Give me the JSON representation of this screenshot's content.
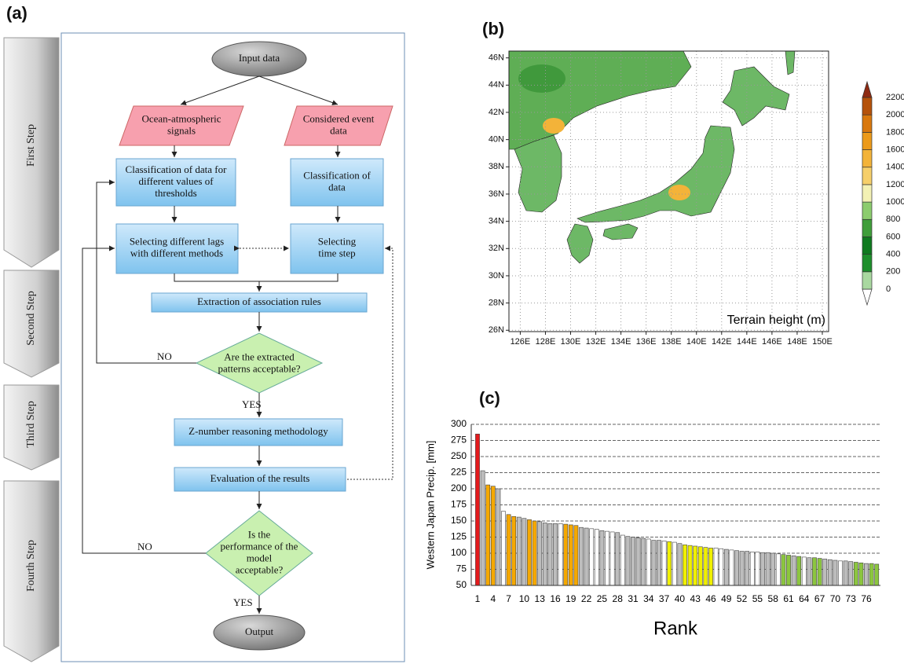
{
  "flowchart": {
    "label": "(a)",
    "steps": [
      "First Step",
      "Second Step",
      "Third Step",
      "Fourth Step"
    ],
    "nodes": [
      {
        "lines": [
          "Input data"
        ]
      },
      {
        "lines": [
          "Ocean-atmospheric",
          "signals"
        ]
      },
      {
        "lines": [
          "Considered event",
          "data"
        ]
      },
      {
        "lines": [
          "Classification of data for",
          "different values of",
          "thresholds"
        ]
      },
      {
        "lines": [
          "Classification of",
          "data"
        ]
      },
      {
        "lines": [
          "Selecting different lags",
          "with different methods"
        ]
      },
      {
        "lines": [
          "Selecting",
          "time step"
        ]
      },
      {
        "lines": [
          "Extraction of association rules"
        ]
      },
      {
        "lines": [
          "Are the extracted",
          "patterns acceptable?"
        ]
      },
      {
        "lines": [
          "Z-number reasoning methodology"
        ]
      },
      {
        "lines": [
          "Evaluation of the results"
        ]
      },
      {
        "lines": [
          "Is the",
          "performance of the",
          "model",
          "acceptable?"
        ]
      },
      {
        "lines": [
          "Output"
        ]
      }
    ],
    "edge_labels": [
      "NO",
      "YES",
      "NO",
      "YES"
    ]
  },
  "chart_data": [
    {
      "type": "map",
      "label": "(b)",
      "annotation": "Terrain height (m)",
      "xlim": [
        125.1,
        150.5
      ],
      "ylim": [
        25.9,
        46.5
      ],
      "xticks": [
        {
          "value": 126,
          "label": "126E"
        },
        {
          "value": 128,
          "label": "128E"
        },
        {
          "value": 130,
          "label": "130E"
        },
        {
          "value": 132,
          "label": "132E"
        },
        {
          "value": 134,
          "label": "134E"
        },
        {
          "value": 136,
          "label": "136E"
        },
        {
          "value": 138,
          "label": "138E"
        },
        {
          "value": 140,
          "label": "140E"
        },
        {
          "value": 142,
          "label": "142E"
        },
        {
          "value": 144,
          "label": "144E"
        },
        {
          "value": 146,
          "label": "146E"
        },
        {
          "value": 148,
          "label": "148E"
        },
        {
          "value": 150,
          "label": "150E"
        }
      ],
      "yticks": [
        {
          "value": 26,
          "label": "26N"
        },
        {
          "value": 28,
          "label": "28N"
        },
        {
          "value": 30,
          "label": "30N"
        },
        {
          "value": 32,
          "label": "32N"
        },
        {
          "value": 34,
          "label": "34N"
        },
        {
          "value": 36,
          "label": "36N"
        },
        {
          "value": 38,
          "label": "38N"
        },
        {
          "value": 40,
          "label": "40N"
        },
        {
          "value": 42,
          "label": "42N"
        },
        {
          "value": 44,
          "label": "44N"
        },
        {
          "value": 46,
          "label": "46N"
        }
      ],
      "grid": true,
      "colorbar": {
        "levels": [
          0,
          200,
          400,
          600,
          800,
          1000,
          1200,
          1400,
          1600,
          1800,
          2000,
          2200
        ],
        "colors": [
          "#ffffff",
          "#a9d8a0",
          "#1e8f2c",
          "#0f7a1f",
          "#3f9e3a",
          "#8ccc6e",
          "#f3f1b4",
          "#f6cf6a",
          "#f3b339",
          "#ec9a1a",
          "#d9780d",
          "#b5520a",
          "#8e2a12"
        ]
      }
    },
    {
      "type": "bar",
      "label": "(c)",
      "ylabel": "Western Japan Precip. [mm]",
      "xlabel": "Rank",
      "ylim": [
        50,
        300
      ],
      "yticks": [
        50,
        75,
        100,
        125,
        150,
        175,
        200,
        225,
        250,
        275,
        300
      ],
      "grid": true,
      "categories": [
        1,
        null,
        null,
        4,
        null,
        null,
        7,
        null,
        null,
        10,
        null,
        null,
        13,
        null,
        null,
        16,
        null,
        null,
        19,
        null,
        null,
        22,
        null,
        null,
        25,
        null,
        null,
        28,
        null,
        null,
        31,
        null,
        null,
        34,
        null,
        null,
        37,
        null,
        null,
        40,
        null,
        null,
        43,
        null,
        null,
        46,
        null,
        null,
        49,
        null,
        null,
        52,
        null,
        null,
        55,
        null,
        null,
        58,
        null,
        null,
        61,
        null,
        null,
        64,
        null,
        null,
        67,
        null,
        null,
        70,
        null,
        null,
        73,
        null,
        null,
        76,
        null,
        null
      ],
      "values": [
        285,
        228,
        206,
        204,
        200,
        165,
        160,
        157,
        156,
        154,
        152,
        150,
        149,
        147,
        146,
        146,
        146,
        145,
        144,
        143,
        140,
        139,
        138,
        137,
        135,
        134,
        133,
        132,
        128,
        126,
        125,
        124,
        123,
        122,
        120,
        120,
        119,
        118,
        117,
        115,
        113,
        112,
        111,
        110,
        109,
        108,
        108,
        107,
        106,
        105,
        104,
        103,
        103,
        102,
        102,
        101,
        101,
        100,
        99,
        98,
        97,
        96,
        95,
        94,
        93,
        93,
        92,
        91,
        90,
        89,
        88,
        88,
        87,
        86,
        85,
        84,
        84,
        83
      ],
      "colors": [
        "#e41a1c",
        "#bdbdbd",
        "#f5a800",
        "#f5a800",
        "#bdbdbd",
        "#ffffff",
        "#f5a800",
        "#f5a800",
        "#bdbdbd",
        "#bdbdbd",
        "#f5a800",
        "#f5a800",
        "#bdbdbd",
        "#bdbdbd",
        "#bdbdbd",
        "#bdbdbd",
        "#ffffff",
        "#f5a800",
        "#f5a800",
        "#f5a800",
        "#bdbdbd",
        "#bdbdbd",
        "#ffffff",
        "#ffffff",
        "#bdbdbd",
        "#ffffff",
        "#ffffff",
        "#bdbdbd",
        "#ffffff",
        "#bdbdbd",
        "#bdbdbd",
        "#bdbdbd",
        "#bdbdbd",
        "#ffffff",
        "#bdbdbd",
        "#bdbdbd",
        "#ffffff",
        "#f0f000",
        "#ffffff",
        "#bdbdbd",
        "#f0f000",
        "#f0f000",
        "#f0f000",
        "#f0f000",
        "#f0f000",
        "#f0f000",
        "#ffffff",
        "#ffffff",
        "#bdbdbd",
        "#ffffff",
        "#bdbdbd",
        "#bdbdbd",
        "#bdbdbd",
        "#ffffff",
        "#ffffff",
        "#bdbdbd",
        "#bdbdbd",
        "#bdbdbd",
        "#ffffff",
        "#8cc63f",
        "#8cc63f",
        "#bdbdbd",
        "#8cc63f",
        "#ffffff",
        "#bdbdbd",
        "#8cc63f",
        "#8cc63f",
        "#bdbdbd",
        "#bdbdbd",
        "#bdbdbd",
        "#ffffff",
        "#bdbdbd",
        "#bdbdbd",
        "#8cc63f",
        "#8cc63f",
        "#bdbdbd",
        "#8cc63f",
        "#8cc63f"
      ]
    }
  ]
}
